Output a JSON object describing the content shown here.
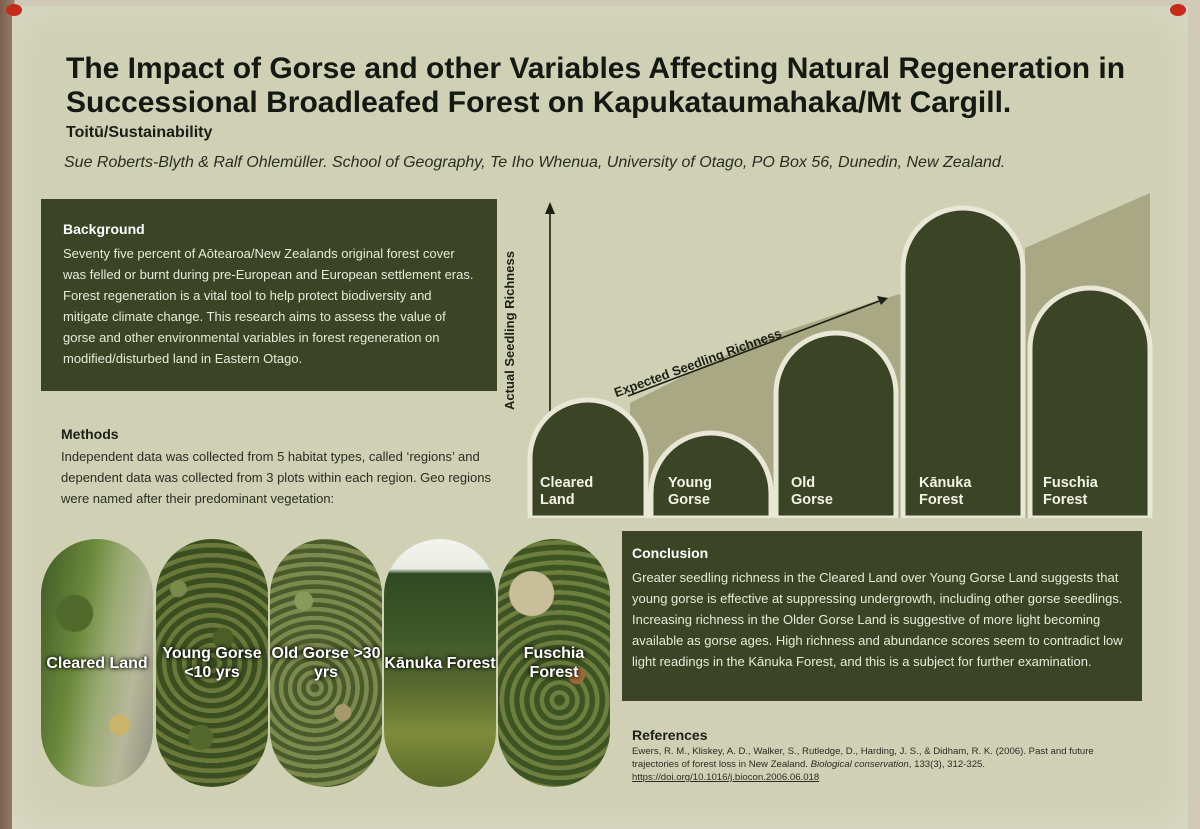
{
  "poster": {
    "title": "The Impact of Gorse and other Variables Affecting Natural Regeneration in Successional Broadleafed Forest on Kapukataumahaka/Mt Cargill.",
    "subtitle": "Toitū/Sustainability",
    "authors": "Sue Roberts-Blyth & Ralf Ohlemüller. School of Geography, Te Iho Whenua, University of Otago, PO Box 56, Dunedin, New Zealand."
  },
  "background": {
    "heading": "Background",
    "text": "Seventy five percent of Aōtearoa/New Zealands original forest cover was felled or burnt during pre-European and European settlement eras. Forest regeneration is a vital tool to help protect biodiversity and mitigate climate change.  This research aims to assess the value of gorse and other environmental variables in forest regeneration on modified/disturbed land in Eastern Otago."
  },
  "methods": {
    "heading": "Methods",
    "text": "Independent data was collected from 5 habitat types, called ‘regions’ and dependent data was collected from 3 plots within each region. Geo regions were named after their predominant vegetation:"
  },
  "photos": [
    {
      "label": "Cleared Land"
    },
    {
      "label": "Young Gorse <10 yrs"
    },
    {
      "label": "Old Gorse >30 yrs"
    },
    {
      "label": "Kānuka Forest"
    },
    {
      "label": "Fuschia Forest"
    }
  ],
  "diagram": {
    "y_axis_label": "Actual Seedling Richness",
    "expected_label": "Expected Seedling Richness",
    "regions": [
      {
        "label": "Cleared Land"
      },
      {
        "label": "Young Gorse"
      },
      {
        "label": "Old Gorse"
      },
      {
        "label": "Kānuka Forest"
      },
      {
        "label": "Fuschia Forest"
      }
    ],
    "colors": {
      "bar": "#3b4526",
      "expected_band": "#a9a885",
      "outline": "#e9e8d6"
    }
  },
  "conclusion": {
    "heading": "Conclusion",
    "text": "Greater seedling richness in the Cleared Land over Young Gorse Land suggests that young gorse is effective at suppressing undergrowth, including other gorse seedlings. Increasing richness in the Older Gorse Land is suggestive of more light becoming available as gorse ages. High richness and abundance scores seem to contradict low light readings in the Kānuka Forest, and this is a subject for further examination."
  },
  "references": {
    "heading": "References",
    "authors": "Ewers, R. M., Kliskey, A. D., Walker, S., Rutledge, D., Harding, J. S., & Didham, R. K. (2006). Past and future trajectories of forest loss in New Zealand. ",
    "journal": "Biological conservation",
    "volume": ", 133(3), 312-325. ",
    "doi": "https://doi.org/10.1016/j.biocon.2006.06.018"
  }
}
